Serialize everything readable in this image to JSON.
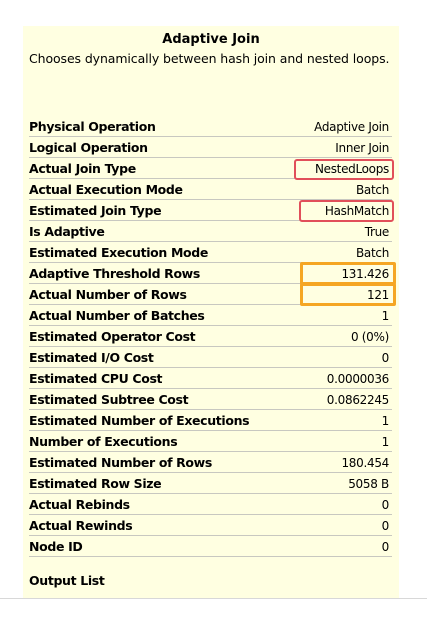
{
  "tooltip": {
    "title": "Adaptive Join",
    "description": "Chooses dynamically between hash join and nested loops.",
    "output_list_label": "Output List",
    "highlight_colors": {
      "red": "#e14f5a",
      "orange": "#f5a623"
    },
    "properties": [
      {
        "label": "Physical Operation",
        "value": "Adaptive Join"
      },
      {
        "label": "Logical Operation",
        "value": "Inner Join"
      },
      {
        "label": "Actual Join Type",
        "value": "NestedLoops",
        "highlight": "red"
      },
      {
        "label": "Actual Execution Mode",
        "value": "Batch"
      },
      {
        "label": "Estimated Join Type",
        "value": "HashMatch",
        "highlight": "red"
      },
      {
        "label": "Is Adaptive",
        "value": "True"
      },
      {
        "label": "Estimated Execution Mode",
        "value": "Batch"
      },
      {
        "label": "Adaptive Threshold Rows",
        "value": "131.426",
        "highlight": "orange"
      },
      {
        "label": "Actual Number of Rows",
        "value": "121",
        "highlight": "orange"
      },
      {
        "label": "Actual Number of Batches",
        "value": "1"
      },
      {
        "label": "Estimated Operator Cost",
        "value": "0 (0%)"
      },
      {
        "label": "Estimated I/O Cost",
        "value": "0"
      },
      {
        "label": "Estimated CPU Cost",
        "value": "0.0000036"
      },
      {
        "label": "Estimated Subtree Cost",
        "value": "0.0862245"
      },
      {
        "label": "Estimated Number of Executions",
        "value": "1"
      },
      {
        "label": "Number of Executions",
        "value": "1"
      },
      {
        "label": "Estimated Number of Rows",
        "value": "180.454"
      },
      {
        "label": "Estimated Row Size",
        "value": "5058 B"
      },
      {
        "label": "Actual Rebinds",
        "value": "0"
      },
      {
        "label": "Actual Rewinds",
        "value": "0"
      },
      {
        "label": "Node ID",
        "value": "0"
      }
    ]
  }
}
